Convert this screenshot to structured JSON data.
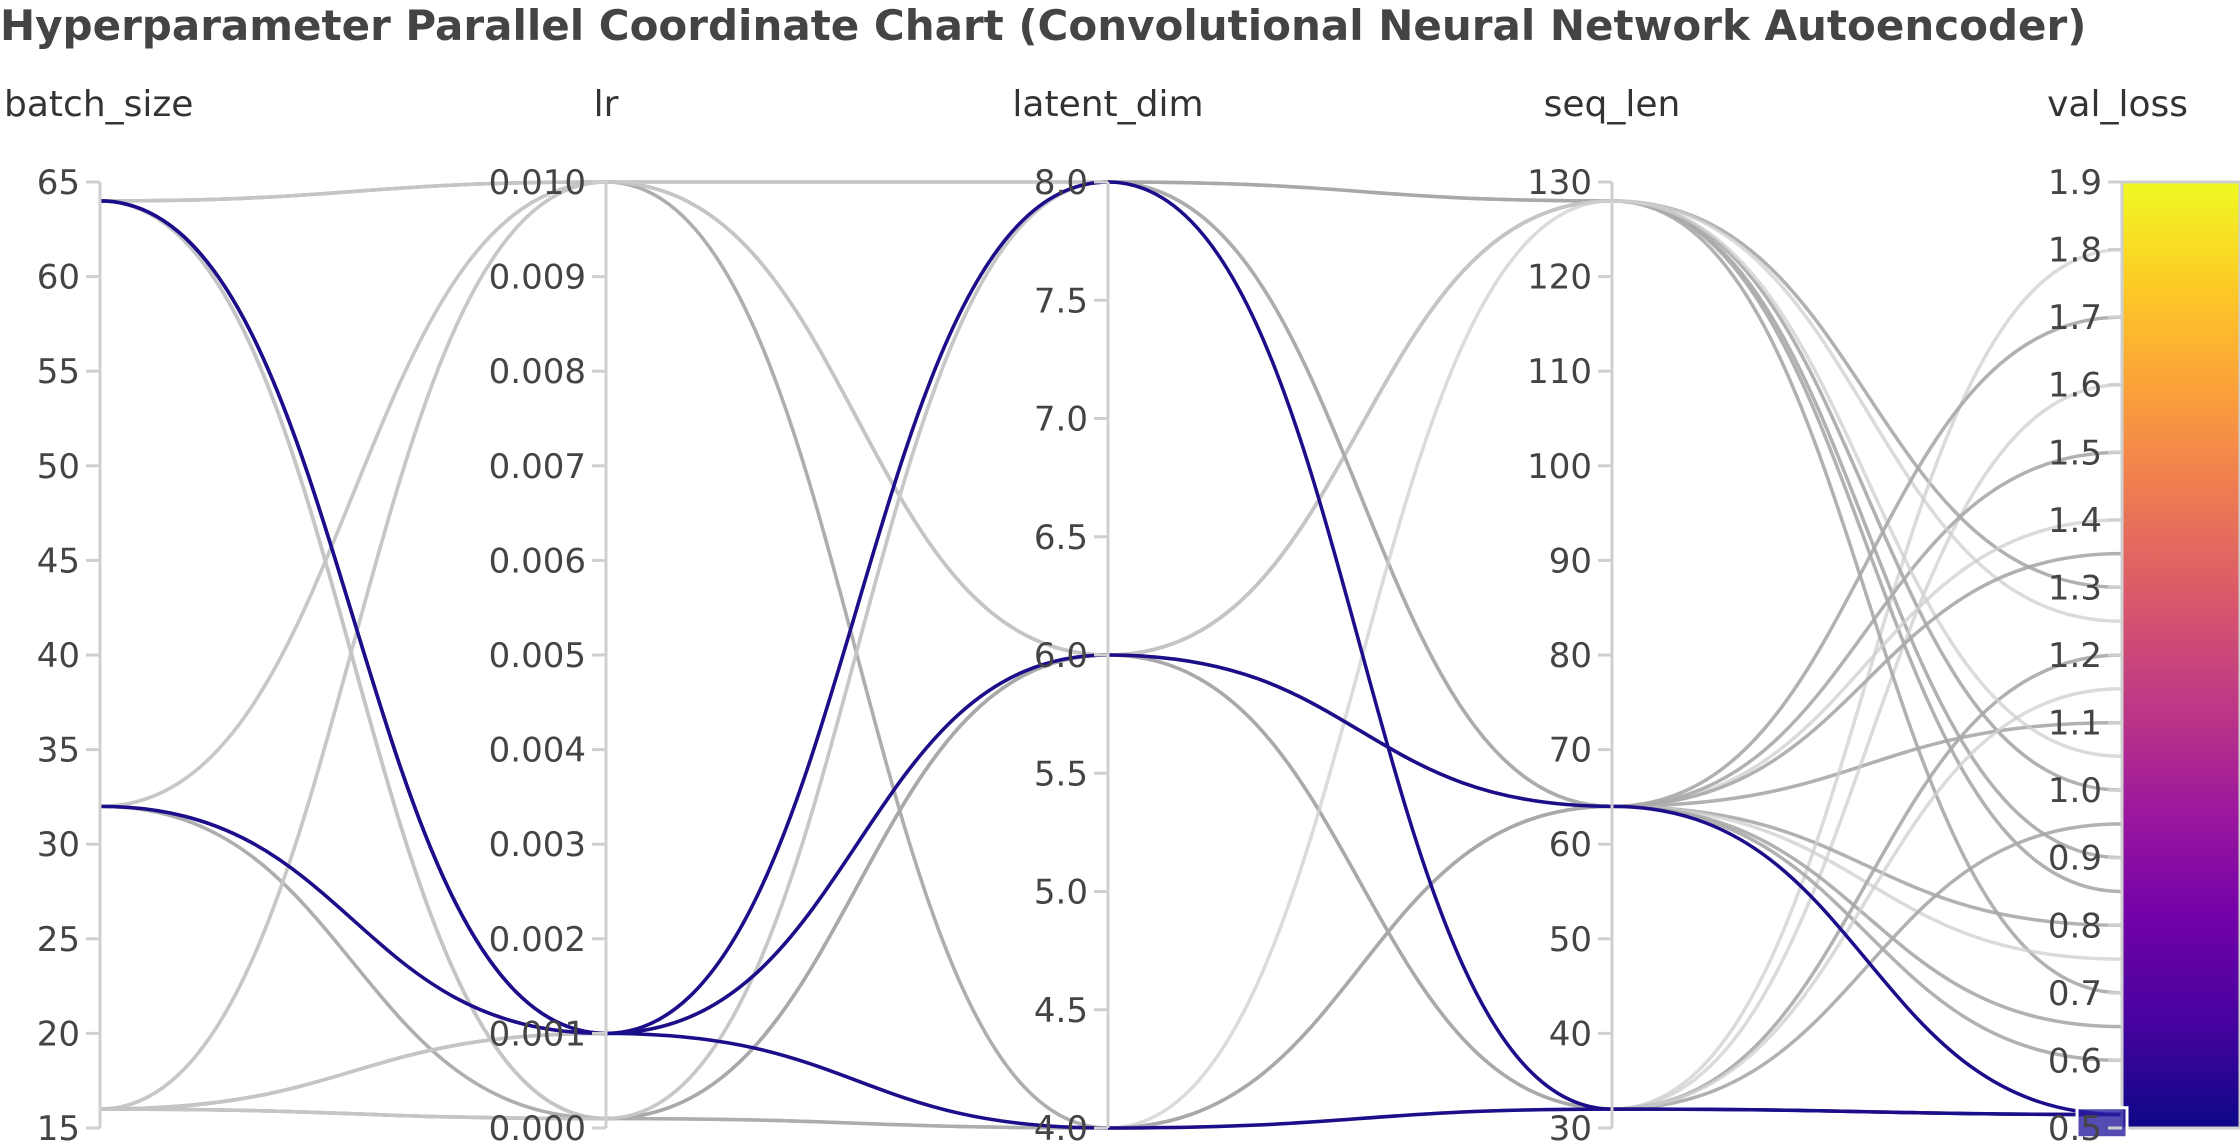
{
  "title": "Hyperparameter Parallel Coordinate Chart (Convolutional Neural Network Autoencoder)",
  "colors": {
    "selected_line": "#1c0e8a",
    "context_line": "#a9a9a9",
    "context_line_faint": "#cfcfcf",
    "axis": "#cfcfcf",
    "colorscale": [
      "#0d0887",
      "#46039f",
      "#7201a8",
      "#9c179e",
      "#bd3786",
      "#d8576b",
      "#ed7953",
      "#fb9f3a",
      "#fdca26",
      "#f0f921"
    ]
  },
  "chart_data": {
    "type": "parallel_coordinates",
    "title": "Hyperparameter Parallel Coordinate Chart (Convolutional Neural Network Autoencoder)",
    "dimensions": [
      {
        "name": "batch_size",
        "range": [
          15,
          65
        ],
        "ticks": [
          "15",
          "20",
          "25",
          "30",
          "35",
          "40",
          "45",
          "50",
          "55",
          "60",
          "65"
        ],
        "tick_values": [
          15,
          20,
          25,
          30,
          35,
          40,
          45,
          50,
          55,
          60,
          65
        ]
      },
      {
        "name": "lr",
        "range": [
          0,
          0.01
        ],
        "ticks": [
          "0.000",
          "0.001",
          "0.002",
          "0.003",
          "0.004",
          "0.005",
          "0.006",
          "0.007",
          "0.008",
          "0.009",
          "0.010"
        ],
        "tick_values": [
          0,
          0.001,
          0.002,
          0.003,
          0.004,
          0.005,
          0.006,
          0.007,
          0.008,
          0.009,
          0.01
        ]
      },
      {
        "name": "latent_dim",
        "range": [
          4,
          8
        ],
        "ticks": [
          "4.0",
          "4.5",
          "5.0",
          "5.5",
          "6.0",
          "6.5",
          "7.0",
          "7.5",
          "8.0"
        ],
        "tick_values": [
          4,
          4.5,
          5,
          5.5,
          6,
          6.5,
          7,
          7.5,
          8
        ]
      },
      {
        "name": "seq_len",
        "range": [
          30,
          130
        ],
        "ticks": [
          "30",
          "40",
          "50",
          "60",
          "70",
          "80",
          "90",
          "100",
          "110",
          "120",
          "130"
        ],
        "tick_values": [
          30,
          40,
          50,
          60,
          70,
          80,
          90,
          100,
          110,
          120,
          130
        ]
      },
      {
        "name": "val_loss",
        "range": [
          0.5,
          1.9
        ],
        "ticks": [
          "0.5",
          "0.6",
          "0.7",
          "0.8",
          "0.9",
          "1.0",
          "1.1",
          "1.2",
          "1.3",
          "1.4",
          "1.5",
          "1.6",
          "1.7",
          "1.8",
          "1.9"
        ],
        "tick_values": [
          0.5,
          0.6,
          0.7,
          0.8,
          0.9,
          1.0,
          1.1,
          1.2,
          1.3,
          1.4,
          1.5,
          1.6,
          1.7,
          1.8,
          1.9
        ]
      }
    ],
    "val_loss_filter_range": [
      0.5,
      0.53
    ],
    "colorbar": {
      "min": 0.5,
      "max": 1.9,
      "colorscale": "plasma"
    },
    "selected_runs": [
      {
        "batch_size": 64,
        "lr": 0.001,
        "latent_dim": 8,
        "seq_len": 32,
        "val_loss": 0.52
      },
      {
        "batch_size": 64,
        "lr": 0.001,
        "latent_dim": 6,
        "seq_len": 64,
        "val_loss": 0.52
      },
      {
        "batch_size": 32,
        "lr": 0.001,
        "latent_dim": 4,
        "seq_len": 32,
        "val_loss": 0.52
      }
    ],
    "context_runs": [
      {
        "batch_size": 64,
        "lr": 0.01,
        "latent_dim": 8,
        "seq_len": 128,
        "val_loss": 0.9
      },
      {
        "batch_size": 64,
        "lr": 0.01,
        "latent_dim": 6,
        "seq_len": 64,
        "val_loss": 1.1
      },
      {
        "batch_size": 64,
        "lr": 0.01,
        "latent_dim": 4,
        "seq_len": 32,
        "val_loss": 1.6
      },
      {
        "batch_size": 64,
        "lr": 0.0001,
        "latent_dim": 8,
        "seq_len": 64,
        "val_loss": 0.8
      },
      {
        "batch_size": 64,
        "lr": 0.0001,
        "latent_dim": 6,
        "seq_len": 128,
        "val_loss": 1.3
      },
      {
        "batch_size": 64,
        "lr": 0.0001,
        "latent_dim": 4,
        "seq_len": 32,
        "val_loss": 1.8
      },
      {
        "batch_size": 64,
        "lr": 0.001,
        "latent_dim": 6,
        "seq_len": 128,
        "val_loss": 0.7
      },
      {
        "batch_size": 32,
        "lr": 0.01,
        "latent_dim": 6,
        "seq_len": 128,
        "val_loss": 1.0
      },
      {
        "batch_size": 32,
        "lr": 0.01,
        "latent_dim": 8,
        "seq_len": 64,
        "val_loss": 0.75
      },
      {
        "batch_size": 32,
        "lr": 0.001,
        "latent_dim": 6,
        "seq_len": 64,
        "val_loss": 0.65
      },
      {
        "batch_size": 32,
        "lr": 0.001,
        "latent_dim": 8,
        "seq_len": 128,
        "val_loss": 0.85
      },
      {
        "batch_size": 32,
        "lr": 0.0001,
        "latent_dim": 4,
        "seq_len": 64,
        "val_loss": 1.4
      },
      {
        "batch_size": 32,
        "lr": 0.0001,
        "latent_dim": 6,
        "seq_len": 32,
        "val_loss": 1.2
      },
      {
        "batch_size": 16,
        "lr": 0.01,
        "latent_dim": 4,
        "seq_len": 64,
        "val_loss": 1.5
      },
      {
        "batch_size": 16,
        "lr": 0.01,
        "latent_dim": 6,
        "seq_len": 128,
        "val_loss": 1.05
      },
      {
        "batch_size": 16,
        "lr": 0.001,
        "latent_dim": 8,
        "seq_len": 64,
        "val_loss": 0.6
      },
      {
        "batch_size": 16,
        "lr": 0.001,
        "latent_dim": 6,
        "seq_len": 32,
        "val_loss": 0.95
      },
      {
        "batch_size": 16,
        "lr": 0.001,
        "latent_dim": 4,
        "seq_len": 128,
        "val_loss": 1.25
      },
      {
        "batch_size": 16,
        "lr": 0.0001,
        "latent_dim": 4,
        "seq_len": 64,
        "val_loss": 1.7
      },
      {
        "batch_size": 16,
        "lr": 0.0001,
        "latent_dim": 6,
        "seq_len": 64,
        "val_loss": 1.35
      },
      {
        "batch_size": 16,
        "lr": 0.0001,
        "latent_dim": 8,
        "seq_len": 32,
        "val_loss": 1.15
      }
    ]
  }
}
